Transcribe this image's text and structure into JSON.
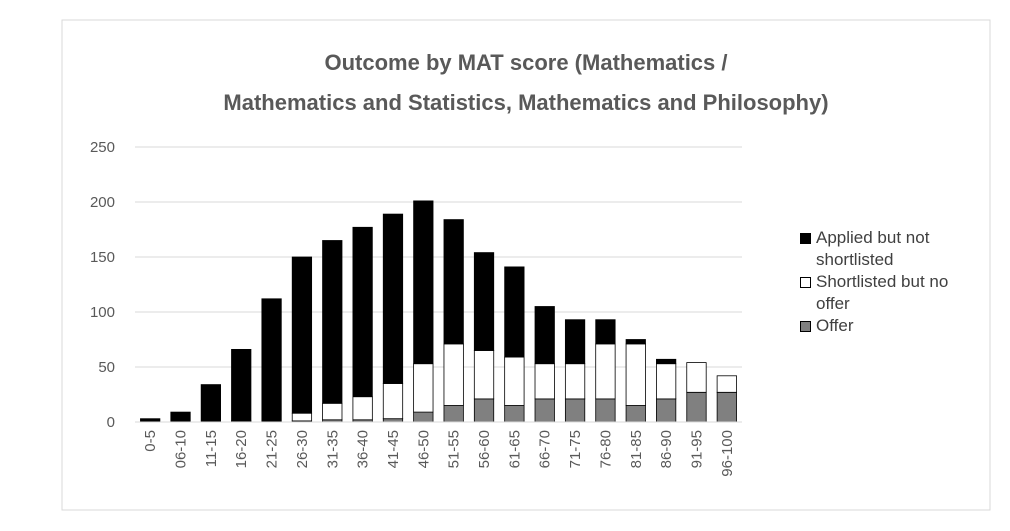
{
  "chart_data": {
    "type": "stacked-bar",
    "title": [
      "Outcome by MAT score (Mathematics /",
      "Mathematics and Statistics, Mathematics and Philosophy)"
    ],
    "categories": [
      "0-5",
      "06-10",
      "11-15",
      "16-20",
      "21-25",
      "26-30",
      "31-35",
      "36-40",
      "41-45",
      "46-50",
      "51-55",
      "56-60",
      "61-65",
      "66-70",
      "71-75",
      "76-80",
      "81-85",
      "86-90",
      "91-95",
      "96-100"
    ],
    "series": [
      {
        "name": "Applied but not shortlisted",
        "color": "#000000",
        "values": [
          3,
          9,
          34,
          65,
          112,
          142,
          148,
          154,
          154,
          148,
          113,
          89,
          82,
          52,
          40,
          22,
          4,
          4,
          0,
          0
        ]
      },
      {
        "name": "Shortlisted but no offer",
        "color": "#ffffff",
        "values": [
          0,
          0,
          0,
          0,
          0,
          7,
          15,
          21,
          32,
          44,
          56,
          44,
          44,
          32,
          32,
          50,
          56,
          32,
          27,
          15
        ]
      },
      {
        "name": "Offer",
        "color": "#808080",
        "values": [
          0,
          0,
          0,
          1,
          0,
          1,
          2,
          2,
          3,
          9,
          15,
          21,
          15,
          21,
          21,
          21,
          15,
          21,
          27,
          27
        ]
      }
    ],
    "ylim": [
      0,
      250
    ],
    "yticks": [
      0,
      50,
      100,
      150,
      200,
      250
    ],
    "grid": true,
    "legend": "right"
  }
}
